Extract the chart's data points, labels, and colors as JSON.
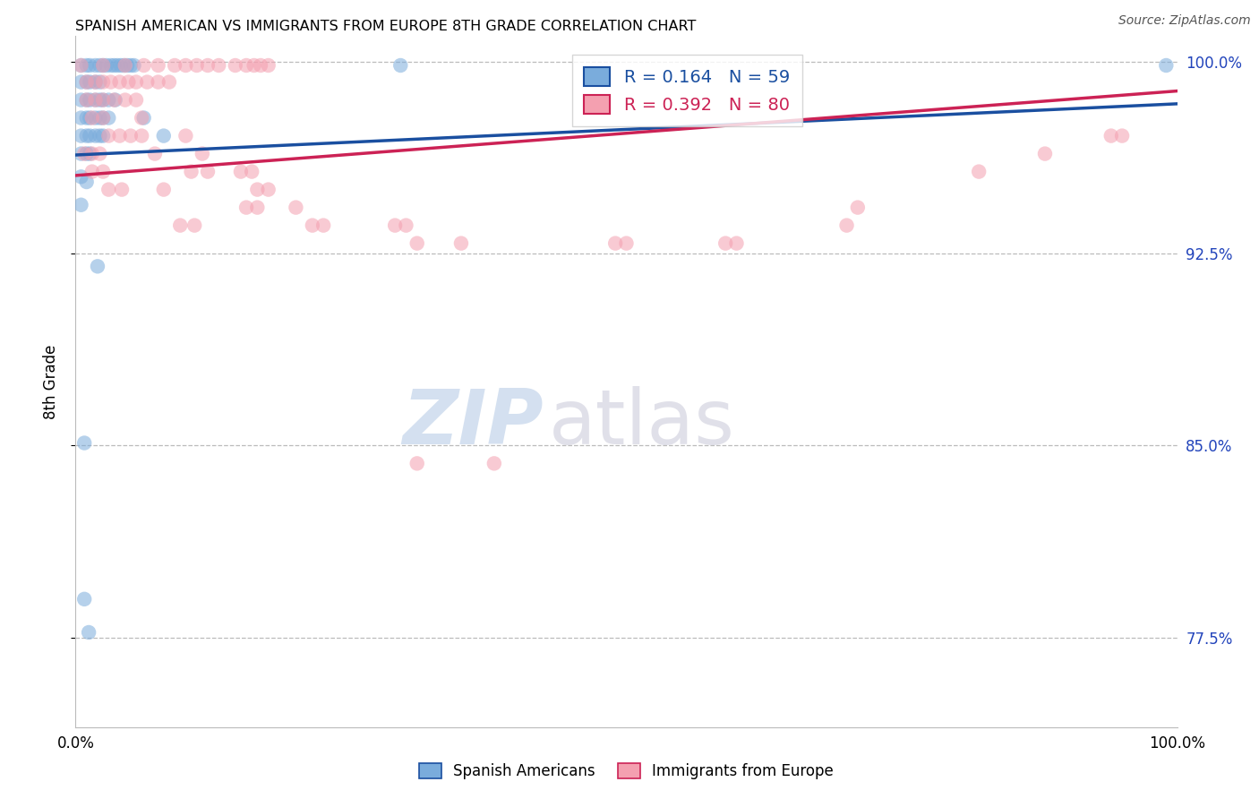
{
  "title": "SPANISH AMERICAN VS IMMIGRANTS FROM EUROPE 8TH GRADE CORRELATION CHART",
  "source": "Source: ZipAtlas.com",
  "ylabel": "8th Grade",
  "ytick_labels": [
    "100.0%",
    "92.5%",
    "85.0%",
    "77.5%"
  ],
  "ytick_values": [
    1.0,
    0.925,
    0.85,
    0.775
  ],
  "legend_blue_text": "R = 0.164   N = 59",
  "legend_pink_text": "R = 0.392   N = 80",
  "blue_color": "#7AACDC",
  "pink_color": "#F4A0B0",
  "trendline_blue": "#1A4FA0",
  "trendline_pink": "#CC2255",
  "blue_trend_x": [
    0.0,
    1.0
  ],
  "blue_trend_y": [
    0.9635,
    0.9835
  ],
  "pink_trend_x": [
    0.0,
    1.0
  ],
  "pink_trend_y": [
    0.9555,
    0.9885
  ],
  "blue_dots": [
    [
      0.005,
      0.9985
    ],
    [
      0.01,
      0.9985
    ],
    [
      0.013,
      0.9985
    ],
    [
      0.018,
      0.9985
    ],
    [
      0.022,
      0.9985
    ],
    [
      0.025,
      0.9985
    ],
    [
      0.028,
      0.9985
    ],
    [
      0.032,
      0.9985
    ],
    [
      0.035,
      0.9985
    ],
    [
      0.038,
      0.9985
    ],
    [
      0.041,
      0.9985
    ],
    [
      0.044,
      0.9985
    ],
    [
      0.047,
      0.9985
    ],
    [
      0.05,
      0.9985
    ],
    [
      0.053,
      0.9985
    ],
    [
      0.005,
      0.992
    ],
    [
      0.01,
      0.992
    ],
    [
      0.013,
      0.992
    ],
    [
      0.018,
      0.992
    ],
    [
      0.022,
      0.992
    ],
    [
      0.005,
      0.985
    ],
    [
      0.01,
      0.985
    ],
    [
      0.013,
      0.985
    ],
    [
      0.018,
      0.985
    ],
    [
      0.022,
      0.985
    ],
    [
      0.025,
      0.985
    ],
    [
      0.03,
      0.985
    ],
    [
      0.036,
      0.985
    ],
    [
      0.005,
      0.978
    ],
    [
      0.01,
      0.978
    ],
    [
      0.013,
      0.978
    ],
    [
      0.018,
      0.978
    ],
    [
      0.022,
      0.978
    ],
    [
      0.025,
      0.978
    ],
    [
      0.03,
      0.978
    ],
    [
      0.005,
      0.971
    ],
    [
      0.01,
      0.971
    ],
    [
      0.013,
      0.971
    ],
    [
      0.018,
      0.971
    ],
    [
      0.022,
      0.971
    ],
    [
      0.025,
      0.971
    ],
    [
      0.005,
      0.964
    ],
    [
      0.01,
      0.964
    ],
    [
      0.013,
      0.964
    ],
    [
      0.062,
      0.978
    ],
    [
      0.08,
      0.971
    ],
    [
      0.005,
      0.955
    ],
    [
      0.01,
      0.953
    ],
    [
      0.005,
      0.944
    ],
    [
      0.02,
      0.92
    ],
    [
      0.008,
      0.851
    ],
    [
      0.008,
      0.79
    ],
    [
      0.012,
      0.777
    ],
    [
      0.295,
      0.9985
    ],
    [
      0.99,
      0.9985
    ]
  ],
  "pink_dots": [
    [
      0.005,
      0.9985
    ],
    [
      0.025,
      0.9985
    ],
    [
      0.045,
      0.9985
    ],
    [
      0.062,
      0.9985
    ],
    [
      0.075,
      0.9985
    ],
    [
      0.09,
      0.9985
    ],
    [
      0.1,
      0.9985
    ],
    [
      0.11,
      0.9985
    ],
    [
      0.12,
      0.9985
    ],
    [
      0.13,
      0.9985
    ],
    [
      0.145,
      0.9985
    ],
    [
      0.155,
      0.9985
    ],
    [
      0.162,
      0.9985
    ],
    [
      0.168,
      0.9985
    ],
    [
      0.175,
      0.9985
    ],
    [
      0.01,
      0.992
    ],
    [
      0.018,
      0.992
    ],
    [
      0.025,
      0.992
    ],
    [
      0.032,
      0.992
    ],
    [
      0.04,
      0.992
    ],
    [
      0.048,
      0.992
    ],
    [
      0.055,
      0.992
    ],
    [
      0.065,
      0.992
    ],
    [
      0.075,
      0.992
    ],
    [
      0.085,
      0.992
    ],
    [
      0.01,
      0.985
    ],
    [
      0.018,
      0.985
    ],
    [
      0.025,
      0.985
    ],
    [
      0.035,
      0.985
    ],
    [
      0.045,
      0.985
    ],
    [
      0.055,
      0.985
    ],
    [
      0.015,
      0.978
    ],
    [
      0.025,
      0.978
    ],
    [
      0.06,
      0.978
    ],
    [
      0.03,
      0.971
    ],
    [
      0.04,
      0.971
    ],
    [
      0.05,
      0.971
    ],
    [
      0.008,
      0.964
    ],
    [
      0.015,
      0.964
    ],
    [
      0.022,
      0.964
    ],
    [
      0.06,
      0.971
    ],
    [
      0.072,
      0.964
    ],
    [
      0.1,
      0.971
    ],
    [
      0.115,
      0.964
    ],
    [
      0.015,
      0.957
    ],
    [
      0.025,
      0.957
    ],
    [
      0.105,
      0.957
    ],
    [
      0.12,
      0.957
    ],
    [
      0.15,
      0.957
    ],
    [
      0.16,
      0.957
    ],
    [
      0.03,
      0.95
    ],
    [
      0.042,
      0.95
    ],
    [
      0.08,
      0.95
    ],
    [
      0.165,
      0.95
    ],
    [
      0.175,
      0.95
    ],
    [
      0.2,
      0.943
    ],
    [
      0.215,
      0.936
    ],
    [
      0.225,
      0.936
    ],
    [
      0.29,
      0.936
    ],
    [
      0.3,
      0.936
    ],
    [
      0.31,
      0.929
    ],
    [
      0.35,
      0.929
    ],
    [
      0.49,
      0.929
    ],
    [
      0.5,
      0.929
    ],
    [
      0.59,
      0.929
    ],
    [
      0.6,
      0.929
    ],
    [
      0.7,
      0.936
    ],
    [
      0.71,
      0.943
    ],
    [
      0.82,
      0.957
    ],
    [
      0.88,
      0.964
    ],
    [
      0.94,
      0.971
    ],
    [
      0.95,
      0.971
    ],
    [
      0.155,
      0.943
    ],
    [
      0.165,
      0.943
    ],
    [
      0.095,
      0.936
    ],
    [
      0.108,
      0.936
    ],
    [
      0.38,
      0.843
    ],
    [
      0.31,
      0.843
    ]
  ],
  "xmin": 0.0,
  "xmax": 1.0,
  "ymin": 0.74,
  "ymax": 1.01
}
